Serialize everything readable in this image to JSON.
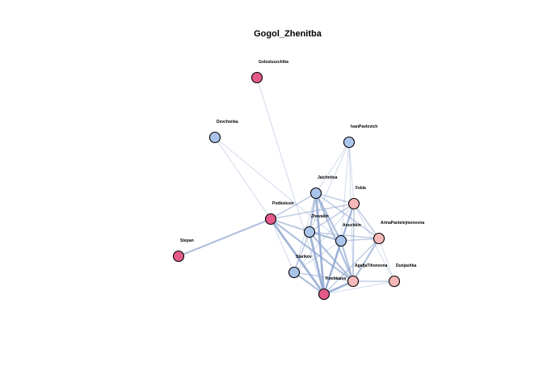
{
  "title": "Gogol_Zhenitba",
  "colors": {
    "male": "#aac4ea",
    "female_light": "#f6b8b8",
    "female_dark": "#e45a8a",
    "edge": "#8fa6d0",
    "node_stroke": "#000000"
  },
  "nodes": [
    {
      "id": "Golosluszchiha",
      "label": "Golosluszchiha",
      "color": "female_dark"
    },
    {
      "id": "Devchonka",
      "label": "Devchonka",
      "color": "male"
    },
    {
      "id": "IvanPavlovich",
      "label": "IvanPavlovich",
      "color": "male"
    },
    {
      "id": "Jaichnitsa",
      "label": "Jaichnitsa",
      "color": "male"
    },
    {
      "id": "Fekla",
      "label": "Fekla",
      "color": "female_light"
    },
    {
      "id": "Podkolesin",
      "label": "Podkolesin",
      "color": "female_dark"
    },
    {
      "id": "Zhevakin",
      "label": "Zhevakin",
      "color": "male"
    },
    {
      "id": "Anuchkin",
      "label": "Anuchkin",
      "color": "male"
    },
    {
      "id": "ArinaPantelejmonovna",
      "label": "ArinaPantelejmonovna",
      "color": "female_light"
    },
    {
      "id": "Stepan",
      "label": "Stepan",
      "color": "female_dark"
    },
    {
      "id": "Starikov",
      "label": "Starikov",
      "color": "male"
    },
    {
      "id": "AgafjaTihonovna",
      "label": "AgafjaTihonovna",
      "color": "female_light"
    },
    {
      "id": "Dunjashka",
      "label": "Dunjashka",
      "color": "female_light"
    },
    {
      "id": "Kochkarev",
      "label": "Kochkarev",
      "color": "female_dark"
    }
  ],
  "edges": [
    {
      "source": "Golosluszchiha",
      "target": "Kochkarev",
      "weight": 1
    },
    {
      "source": "Devchonka",
      "target": "Podkolesin",
      "weight": 1
    },
    {
      "source": "Devchonka",
      "target": "Anuchkin",
      "weight": 1
    },
    {
      "source": "IvanPavlovich",
      "target": "Jaichnitsa",
      "weight": 1
    },
    {
      "source": "IvanPavlovich",
      "target": "Fekla",
      "weight": 1
    },
    {
      "source": "IvanPavlovich",
      "target": "Zhevakin",
      "weight": 1
    },
    {
      "source": "IvanPavlovich",
      "target": "Anuchkin",
      "weight": 1
    },
    {
      "source": "IvanPavlovich",
      "target": "AgafjaTihonovna",
      "weight": 1
    },
    {
      "source": "Stepan",
      "target": "Podkolesin",
      "weight": 3
    },
    {
      "source": "Podkolesin",
      "target": "Kochkarev",
      "weight": 4
    },
    {
      "source": "Podkolesin",
      "target": "Jaichnitsa",
      "weight": 2
    },
    {
      "source": "Podkolesin",
      "target": "Fekla",
      "weight": 2
    },
    {
      "source": "Podkolesin",
      "target": "Zhevakin",
      "weight": 2
    },
    {
      "source": "Podkolesin",
      "target": "AgafjaTihonovna",
      "weight": 3
    },
    {
      "source": "Podkolesin",
      "target": "Starikov",
      "weight": 1
    },
    {
      "source": "Podkolesin",
      "target": "Anuchkin",
      "weight": 1
    },
    {
      "source": "Jaichnitsa",
      "target": "Fekla",
      "weight": 2
    },
    {
      "source": "Jaichnitsa",
      "target": "Zhevakin",
      "weight": 3
    },
    {
      "source": "Jaichnitsa",
      "target": "Anuchkin",
      "weight": 3
    },
    {
      "source": "Jaichnitsa",
      "target": "AgafjaTihonovna",
      "weight": 3
    },
    {
      "source": "Jaichnitsa",
      "target": "Kochkarev",
      "weight": 4
    },
    {
      "source": "Jaichnitsa",
      "target": "Starikov",
      "weight": 1
    },
    {
      "source": "Jaichnitsa",
      "target": "ArinaPantelejmonovna",
      "weight": 2
    },
    {
      "source": "Fekla",
      "target": "Zhevakin",
      "weight": 2
    },
    {
      "source": "Fekla",
      "target": "Anuchkin",
      "weight": 2
    },
    {
      "source": "Fekla",
      "target": "AgafjaTihonovna",
      "weight": 2
    },
    {
      "source": "Fekla",
      "target": "Kochkarev",
      "weight": 3
    },
    {
      "source": "Fekla",
      "target": "ArinaPantelejmonovna",
      "weight": 2
    },
    {
      "source": "Fekla",
      "target": "Dunjashka",
      "weight": 1
    },
    {
      "source": "Fekla",
      "target": "Starikov",
      "weight": 1
    },
    {
      "source": "Zhevakin",
      "target": "Anuchkin",
      "weight": 3
    },
    {
      "source": "Zhevakin",
      "target": "AgafjaTihonovna",
      "weight": 3
    },
    {
      "source": "Zhevakin",
      "target": "Kochkarev",
      "weight": 4
    },
    {
      "source": "Zhevakin",
      "target": "Starikov",
      "weight": 2
    },
    {
      "source": "Zhevakin",
      "target": "ArinaPantelejmonovna",
      "weight": 2
    },
    {
      "source": "Anuchkin",
      "target": "AgafjaTihonovna",
      "weight": 3
    },
    {
      "source": "Anuchkin",
      "target": "Kochkarev",
      "weight": 3
    },
    {
      "source": "Anuchkin",
      "target": "ArinaPantelejmonovna",
      "weight": 2
    },
    {
      "source": "Anuchkin",
      "target": "Starikov",
      "weight": 1
    },
    {
      "source": "ArinaPantelejmonovna",
      "target": "AgafjaTihonovna",
      "weight": 3
    },
    {
      "source": "ArinaPantelejmonovna",
      "target": "Kochkarev",
      "weight": 2
    },
    {
      "source": "ArinaPantelejmonovna",
      "target": "Dunjashka",
      "weight": 1
    },
    {
      "source": "AgafjaTihonovna",
      "target": "Kochkarev",
      "weight": 4
    },
    {
      "source": "AgafjaTihonovna",
      "target": "Dunjashka",
      "weight": 2
    },
    {
      "source": "AgafjaTihonovna",
      "target": "Starikov",
      "weight": 2
    },
    {
      "source": "Starikov",
      "target": "Kochkarev",
      "weight": 3
    },
    {
      "source": "Dunjashka",
      "target": "Kochkarev",
      "weight": 1
    }
  ]
}
